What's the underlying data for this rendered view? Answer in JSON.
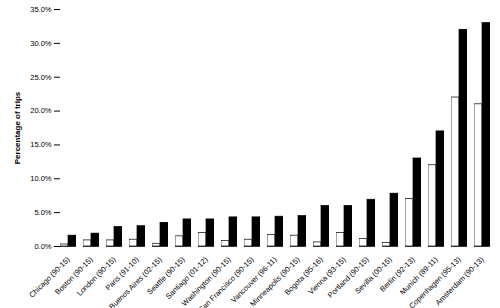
{
  "chart_data": {
    "type": "bar",
    "y_label": "Percentage of trips",
    "categories": [
      "Chicago (90-15)",
      "Boston (90-15)",
      "London (90-15)",
      "Paris (91-10)",
      "Buenos Aires (02-15)",
      "Seattle (90-15)",
      "Santiago (01-12)",
      "Washington (90-15)",
      "San Francisco (90-15)",
      "Vancouver (96-11)",
      "Minneapolis (90-15)",
      "Bogota (95-16)",
      "Vienna (93-15)",
      "Portland (90-15)",
      "Sevilla (00-15)",
      "Berlin (92-13)",
      "Munich (89-11)",
      "Copenhagen (95-13)",
      "Amsterdam (90-13)"
    ],
    "series": [
      {
        "color": "#ffffff",
        "values": [
          0.3,
          0.9,
          0.9,
          1.0,
          0.4,
          1.5,
          2.0,
          0.8,
          1.0,
          1.7,
          1.6,
          0.6,
          2.0,
          1.1,
          0.5,
          7.0,
          12.0,
          22.0,
          21.0
        ]
      },
      {
        "color": "#000000",
        "values": [
          1.6,
          1.9,
          2.9,
          3.0,
          3.5,
          4.0,
          4.0,
          4.3,
          4.3,
          4.4,
          4.5,
          6.0,
          6.0,
          6.9,
          7.8,
          13.0,
          17.0,
          32.0,
          33.0
        ]
      }
    ],
    "ylim": [
      0,
      35
    ],
    "yticks": [
      {
        "value": 0,
        "label": "0.0%"
      },
      {
        "value": 5,
        "label": "5.0%"
      },
      {
        "value": 10,
        "label": "10.0%"
      },
      {
        "value": 15,
        "label": "15.0%"
      },
      {
        "value": 20,
        "label": "20.0%"
      },
      {
        "value": 25,
        "label": "25.0%"
      },
      {
        "value": 30,
        "label": "30.0%"
      },
      {
        "value": 35,
        "label": "35.0%"
      }
    ],
    "grid": false
  }
}
